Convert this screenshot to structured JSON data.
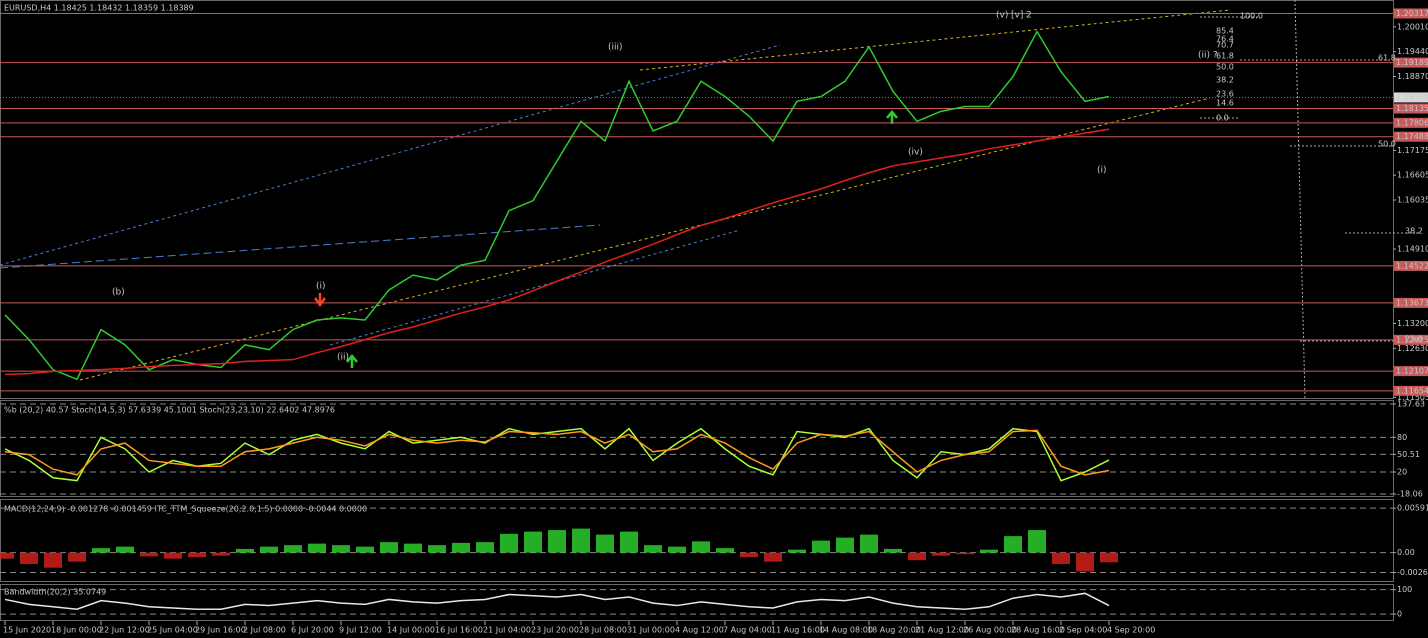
{
  "chart_data": [
    {
      "type": "line",
      "title": "EURUSD,H4  1.18425 1.18432 1.18359 1.18389",
      "categories": [
        "15 Jun 2020",
        null,
        "18 Jun 00:00",
        null,
        "22 Jun 12:00",
        null,
        "25 Jun 04:00",
        null,
        "29 Jun 16:00",
        null,
        "2 Jul 08:00",
        null,
        "6 Jul 20:00",
        null,
        "9 Jul 12:00",
        null,
        "14 Jul 00:00",
        null,
        "16 Jul 16:00",
        null,
        "21 Jul 04:00",
        null,
        "23 Jul 20:00",
        null,
        "28 Jul 08:00",
        null,
        "31 Jul 00:00",
        null,
        "4 Aug 12:00",
        null,
        "7 Aug 04:00",
        null,
        "11 Aug 16:00",
        null,
        "14 Aug 08:00",
        null,
        "18 Aug 20:00",
        null,
        "21 Aug 12:00",
        null,
        "26 Aug 00:00",
        null,
        "28 Aug 16:00",
        null,
        "2 Sep 04:00",
        null,
        "4 Sep 20:00"
      ],
      "series": [
        {
          "color": "#2ecc2e",
          "values": [
            1.134,
            1.1283,
            1.1214,
            1.1192,
            1.1306,
            1.1271,
            1.1214,
            1.1237,
            1.1226,
            1.1219,
            1.1271,
            1.126,
            1.1306,
            1.1328,
            1.1333,
            1.1328,
            1.1397,
            1.1431,
            1.142,
            1.1454,
            1.1465,
            1.1579,
            1.1602,
            1.1693,
            1.1784,
            1.1739,
            1.1876,
            1.1762,
            1.1784,
            1.1876,
            1.1841,
            1.1796,
            1.1739,
            1.183,
            1.1841,
            1.1876,
            1.1955,
            1.1853,
            1.1784,
            1.1807,
            1.1818,
            1.1818,
            1.1887,
            1.199,
            1.1898,
            1.183,
            1.1841
          ]
        },
        {
          "color": "#e0201c",
          "values": [
            1.1203,
            1.1205,
            1.121,
            1.1212,
            1.1214,
            1.1217,
            1.1221,
            1.1224,
            1.1226,
            1.1228,
            1.1233,
            1.1235,
            1.1237,
            1.1253,
            1.1267,
            1.1283,
            1.1299,
            1.1312,
            1.1328,
            1.1344,
            1.1358,
            1.1374,
            1.1395,
            1.1417,
            1.1438,
            1.1461,
            1.1481,
            1.1502,
            1.1524,
            1.1545,
            1.1561,
            1.1579,
            1.1597,
            1.1613,
            1.1629,
            1.1648,
            1.1666,
            1.1682,
            1.1691,
            1.17,
            1.1709,
            1.1721,
            1.173,
            1.1739,
            1.1748,
            1.1757,
            1.1766
          ]
        }
      ],
      "ylim": [
        1.1149,
        1.2058
      ],
      "yticks": [
        {
          "value": 1.2001,
          "label": "1.20010"
        },
        {
          "value": 1.1944,
          "label": "1.19440"
        },
        {
          "value": 1.1887,
          "label": "1.18870"
        },
        1.17175,
        1.16605,
        1.16035,
        {
          "value": 1.1491,
          "label": "1.14910"
        },
        {
          "value": 1.132,
          "label": "1.13200"
        },
        {
          "value": 1.1263,
          "label": "1.12630"
        },
        1.11505
      ],
      "levels": [
        1.20317,
        1.19189,
        1.18135,
        1.17806,
        1.17488,
        1.14522,
        1.13673,
        1.12825,
        1.12107,
        1.11654
      ],
      "level_color": "#c85a5a",
      "last_price": 1.18389,
      "annotations": [
        "(b)",
        "(i)",
        "(ii)",
        "(iii)",
        "(iv)",
        "(v)",
        "[v]",
        "2",
        "(i)",
        "(ii) ?",
        "100.0",
        "85.4",
        "76.4",
        "70.7",
        "61.8",
        "50.0",
        "38.2",
        "23.6",
        "14.6",
        "0.0",
        "61.8",
        "50.0",
        "38.2",
        "23.6"
      ]
    },
    {
      "type": "oscillator",
      "title": "%b (20,2) 40.57  Stoch(14,5,3) 57.6339 45.1001  Stoch(23,23,10) 22.6402 47.8976",
      "series": [
        {
          "color": "#adff2f",
          "values": [
            60,
            40,
            10,
            5,
            80,
            60,
            20,
            40,
            30,
            35,
            70,
            50,
            75,
            85,
            70,
            60,
            90,
            70,
            75,
            80,
            70,
            95,
            85,
            90,
            95,
            60,
            95,
            40,
            70,
            95,
            60,
            30,
            15,
            90,
            85,
            80,
            95,
            40,
            10,
            55,
            50,
            60,
            95,
            90,
            5,
            20,
            40.57
          ]
        },
        {
          "color": "#ff9a1a",
          "values": [
            55,
            50,
            25,
            15,
            60,
            70,
            40,
            35,
            30,
            30,
            55,
            60,
            70,
            80,
            75,
            65,
            85,
            75,
            70,
            75,
            72,
            90,
            88,
            85,
            90,
            70,
            85,
            55,
            60,
            85,
            70,
            45,
            25,
            70,
            85,
            82,
            90,
            55,
            20,
            40,
            50,
            55,
            90,
            92,
            30,
            15,
            22.64
          ]
        }
      ],
      "ylim": [
        -18.06,
        137.63
      ],
      "yticks": [
        -18.06,
        20,
        50.51,
        80,
        137.63
      ]
    },
    {
      "type": "histogram",
      "title": "MACD(12,24,9) -0.001278 -0.001459  ITC_TTM_Squeeze(20,2.0,1.5) 0.0000 -0.0044 0.0000",
      "values": [
        -0.0008,
        -0.0015,
        -0.002,
        -0.0012,
        0.0006,
        0.0008,
        -0.0005,
        -0.0008,
        -0.0006,
        -0.0004,
        0.0005,
        0.0008,
        0.001,
        0.0012,
        0.001,
        0.0008,
        0.0014,
        0.0012,
        0.001,
        0.0013,
        0.0014,
        0.0025,
        0.0028,
        0.003,
        0.0032,
        0.0024,
        0.0028,
        0.001,
        0.0008,
        0.0015,
        0.0006,
        -0.0006,
        -0.0012,
        0.0004,
        0.0016,
        0.002,
        0.0024,
        0.0005,
        -0.001,
        -0.0004,
        -0.0002,
        0.0004,
        0.0022,
        0.003,
        -0.0015,
        -0.0025,
        -0.001278
      ],
      "positive_color": "#2ecc2e",
      "negative_color": "#d0201c",
      "ylim": [
        -0.0035,
        0.0066
      ],
      "yticks": [
        -0.002641,
        {
          "value": 0,
          "label": "0.00"
        },
        0.005911
      ]
    },
    {
      "type": "line",
      "title": "Bandwidth(20,2) 35.0749",
      "series": [
        {
          "color": "#e8e8e8",
          "values": [
            60,
            40,
            30,
            20,
            55,
            45,
            30,
            25,
            20,
            20,
            40,
            35,
            45,
            55,
            45,
            40,
            60,
            50,
            45,
            55,
            60,
            80,
            75,
            70,
            80,
            60,
            70,
            45,
            35,
            50,
            40,
            30,
            25,
            50,
            60,
            55,
            70,
            45,
            30,
            25,
            20,
            30,
            65,
            80,
            70,
            85,
            35.0749
          ]
        }
      ],
      "ylim": [
        -20,
        115
      ],
      "yticks": [
        0,
        100
      ]
    }
  ]
}
